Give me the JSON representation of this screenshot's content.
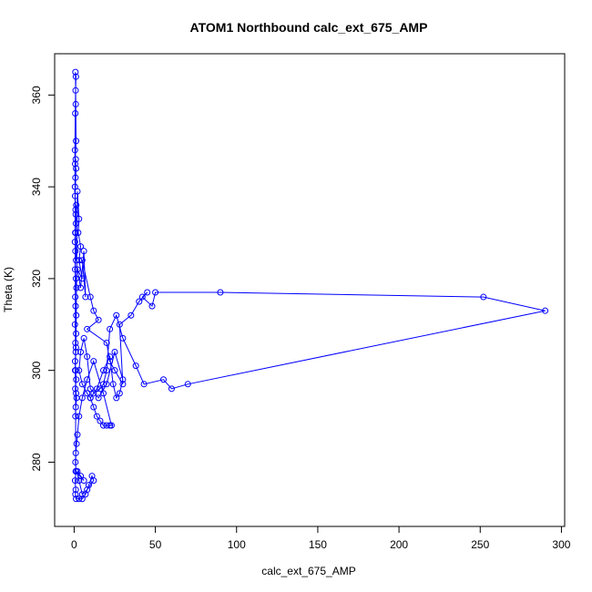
{
  "chart_data": {
    "type": "scatter",
    "title": "ATOM1 Northbound calc_ext_675_AMP",
    "xlabel": "calc_ext_675_AMP",
    "ylabel": "Theta (K)",
    "xlim": [
      -12,
      302
    ],
    "ylim": [
      266,
      369
    ],
    "xticks": [
      0,
      50,
      100,
      150,
      200,
      250,
      300
    ],
    "yticks": [
      280,
      300,
      320,
      340,
      360
    ],
    "grid": false,
    "connect_points": true,
    "color": "#0000ff",
    "series": [
      {
        "x": [
          0.5,
          1,
          0.8,
          1.2,
          0.6,
          0.9,
          1.1,
          0.7,
          1.3,
          0.5,
          1,
          0.8,
          1.2,
          0.9,
          0.6,
          1.4,
          1.1,
          0.7,
          0.9,
          1.3,
          0.5,
          1.2,
          0.8,
          1,
          0.6,
          0.9,
          1.3,
          0.7,
          1.5,
          1,
          0.8,
          1.2,
          0.6,
          1.1,
          2,
          3,
          2.5,
          4,
          3,
          5,
          2,
          4,
          6,
          7,
          5,
          10,
          12,
          15,
          8,
          20,
          22,
          25,
          30,
          28,
          35,
          40,
          45,
          42,
          48,
          50,
          90,
          252,
          290,
          70,
          60,
          55,
          43,
          38,
          30,
          26,
          22,
          20,
          18,
          16,
          12,
          10,
          14,
          18,
          22,
          24,
          26,
          28,
          30,
          25,
          20,
          15,
          10,
          8,
          6,
          4,
          3,
          5,
          8,
          10,
          12,
          14,
          16,
          18,
          20,
          22,
          23,
          18,
          12,
          8,
          5,
          3,
          2,
          1.5,
          1,
          0.8,
          1.2,
          0.6,
          1,
          0.8,
          1.2,
          3,
          5,
          7,
          9,
          11,
          12,
          8,
          5,
          3,
          2,
          4,
          6,
          1,
          0.5,
          0.7,
          0.9,
          1.1,
          0.8,
          1,
          1.2,
          0.6
        ],
        "y": [
          340,
          346,
          342,
          344,
          338,
          335,
          332,
          330,
          336,
          328,
          334,
          326,
          324,
          330,
          322,
          318,
          320,
          316,
          314,
          312,
          310,
          308,
          306,
          304,
          302,
          300,
          298,
          296,
          294,
          292,
          290,
          295,
          300,
          305,
          339,
          333,
          330,
          327,
          324,
          320,
          322,
          318,
          326,
          316,
          324,
          316,
          313,
          311,
          309,
          306,
          302,
          300,
          297,
          310,
          312,
          315,
          317,
          316,
          314,
          317,
          317,
          316,
          313,
          297,
          296,
          298,
          297,
          301,
          307,
          312,
          309,
          300,
          297,
          296,
          295,
          294,
          296,
          300,
          303,
          297,
          294,
          295,
          298,
          304,
          297,
          294,
          296,
          303,
          307,
          304,
          300,
          297,
          295,
          294,
          292,
          290,
          289,
          288,
          288,
          288,
          288,
          295,
          302,
          298,
          294,
          290,
          286,
          284,
          282,
          280,
          278,
          276,
          274,
          273,
          272,
          272,
          272,
          273,
          275,
          277,
          276,
          274,
          273,
          276,
          278,
          277,
          276,
          278,
          348,
          356,
          361,
          364,
          365,
          358,
          350,
          345
        ]
      }
    ]
  }
}
